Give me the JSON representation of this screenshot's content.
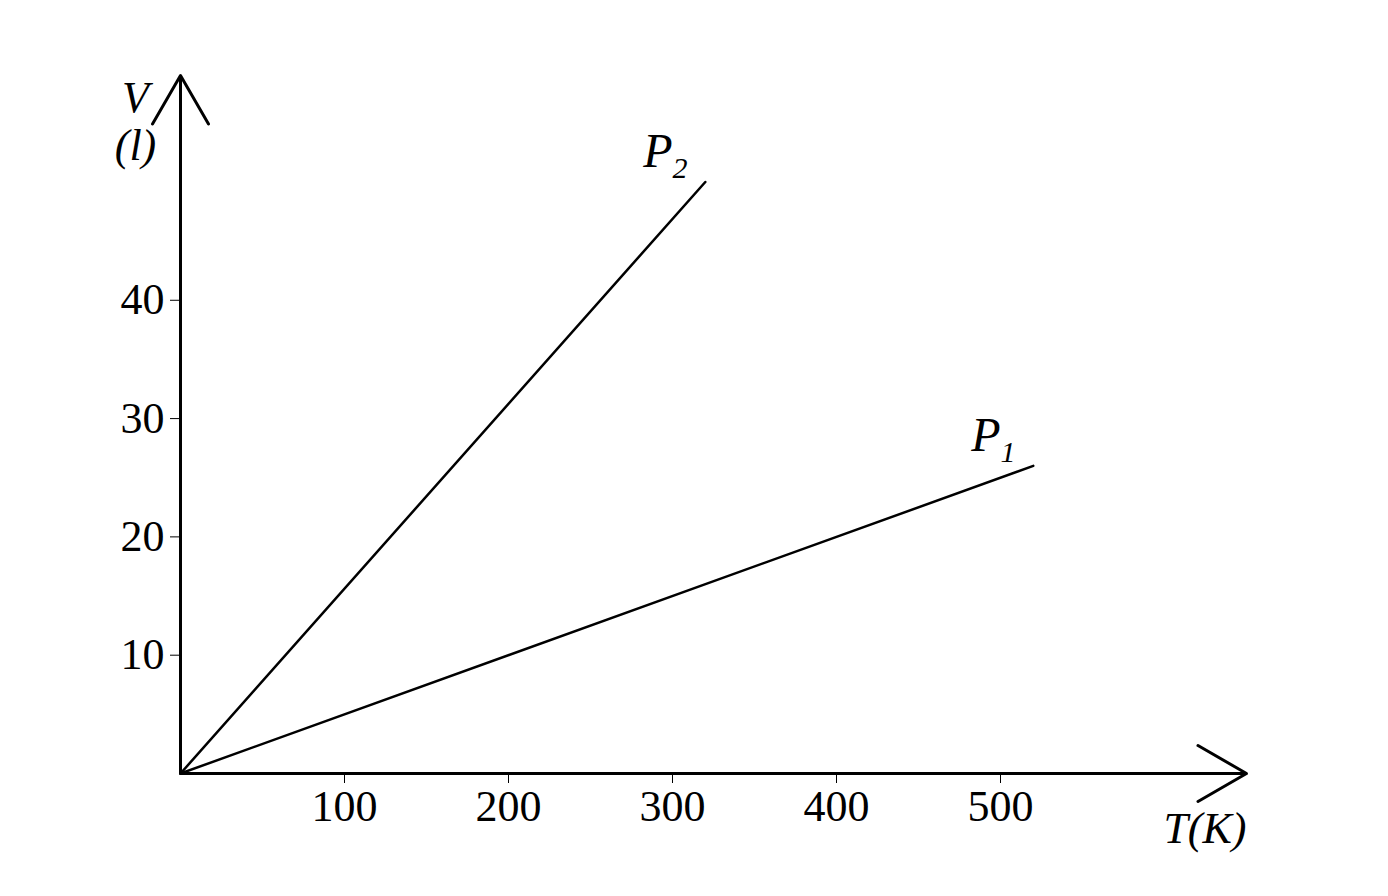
{
  "chart_data": {
    "type": "line",
    "x_label": "T(K)",
    "y_label": "V (l)",
    "series": [
      {
        "name": "P2",
        "color": "#000000",
        "x": [
          0,
          320
        ],
        "values": [
          0,
          50
        ]
      },
      {
        "name": "P1",
        "color": "#000000",
        "x": [
          0,
          520
        ],
        "values": [
          0,
          26
        ]
      }
    ],
    "xlim": [
      0,
      650
    ],
    "xticks": [
      100,
      200,
      300,
      400,
      500
    ],
    "ylim": [
      0,
      59
    ],
    "yticks": [
      10,
      20,
      30,
      40
    ],
    "grid": false
  }
}
